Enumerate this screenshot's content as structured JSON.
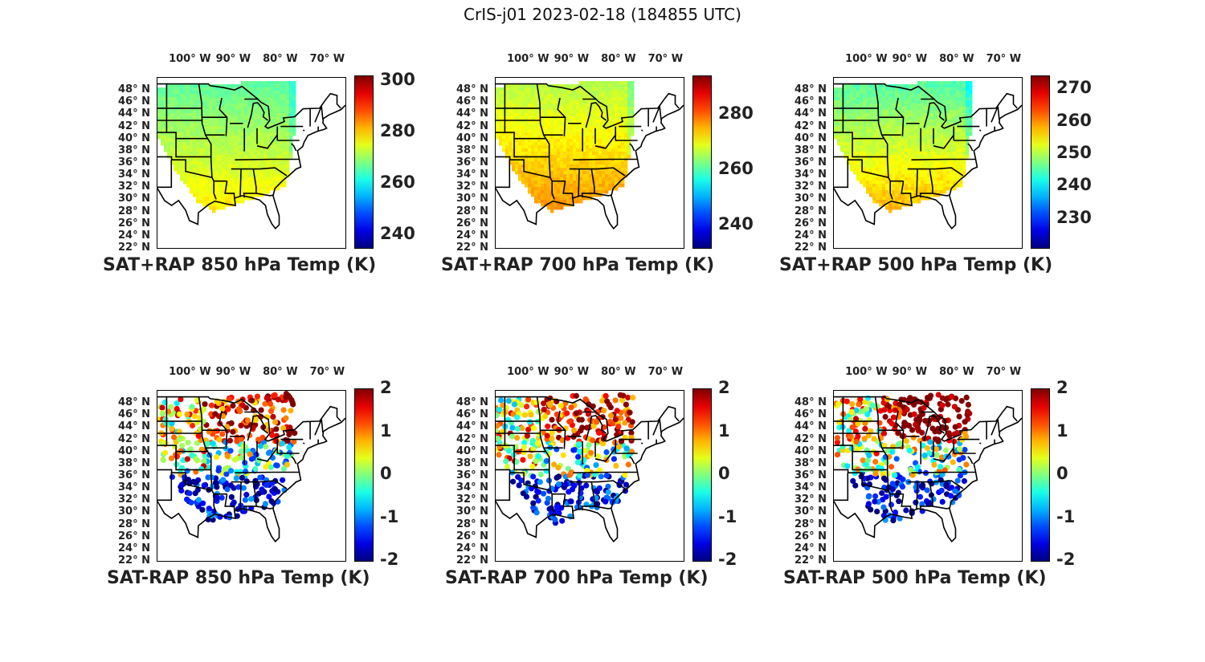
{
  "figure": {
    "title": "CrIS-j01 2023-02-18 (184855 UTC)"
  },
  "axes": {
    "lon_labels": [
      "100° W",
      "90° W",
      "80° W",
      "70° W"
    ],
    "lat_labels": [
      "48° N",
      "46° N",
      "44° N",
      "42° N",
      "40° N",
      "38° N",
      "36° N",
      "34° N",
      "32° N",
      "30° N",
      "28° N",
      "26° N",
      "24° N",
      "22° N"
    ],
    "lon_range": [
      -106,
      -66
    ],
    "lat_range": [
      22,
      50
    ]
  },
  "colormap": {
    "name": "jet"
  },
  "panels": [
    {
      "title": "SAT+RAP 850 hPa Temp (K)",
      "kind": "field",
      "clim": [
        235,
        302
      ],
      "ticks": [
        "300",
        "280",
        "260",
        "240"
      ],
      "tick_values": [
        300,
        280,
        260,
        240
      ],
      "south_value": 282,
      "north_value": 266
    },
    {
      "title": "SAT+RAP 700 hPa Temp (K)",
      "kind": "field",
      "clim": [
        232,
        294
      ],
      "ticks": [
        "280",
        "260",
        "240"
      ],
      "tick_values": [
        280,
        260,
        240
      ],
      "south_value": 281,
      "north_value": 266
    },
    {
      "title": "SAT+RAP 500 hPa Temp (K)",
      "kind": "field",
      "clim": [
        221,
        274
      ],
      "ticks": [
        "270",
        "260",
        "250",
        "240",
        "230"
      ],
      "tick_values": [
        270,
        260,
        250,
        240,
        230
      ],
      "south_value": 262,
      "north_value": 245
    },
    {
      "title": "SAT-RAP 850 hPa Temp (K)",
      "kind": "diff",
      "clim": [
        -2,
        2
      ],
      "ticks": [
        "2",
        "1",
        "0",
        "-1",
        "-2"
      ],
      "tick_values": [
        2,
        1,
        0,
        -1,
        -2
      ]
    },
    {
      "title": "SAT-RAP 700 hPa Temp (K)",
      "kind": "diff",
      "clim": [
        -2,
        2
      ],
      "ticks": [
        "2",
        "1",
        "0",
        "-1",
        "-2"
      ],
      "tick_values": [
        2,
        1,
        0,
        -1,
        -2
      ]
    },
    {
      "title": "SAT-RAP 500 hPa Temp (K)",
      "kind": "diff",
      "clim": [
        -2,
        2
      ],
      "ticks": [
        "2",
        "1",
        "0",
        "-1",
        "-2"
      ],
      "tick_values": [
        2,
        1,
        0,
        -1,
        -2
      ]
    }
  ]
}
